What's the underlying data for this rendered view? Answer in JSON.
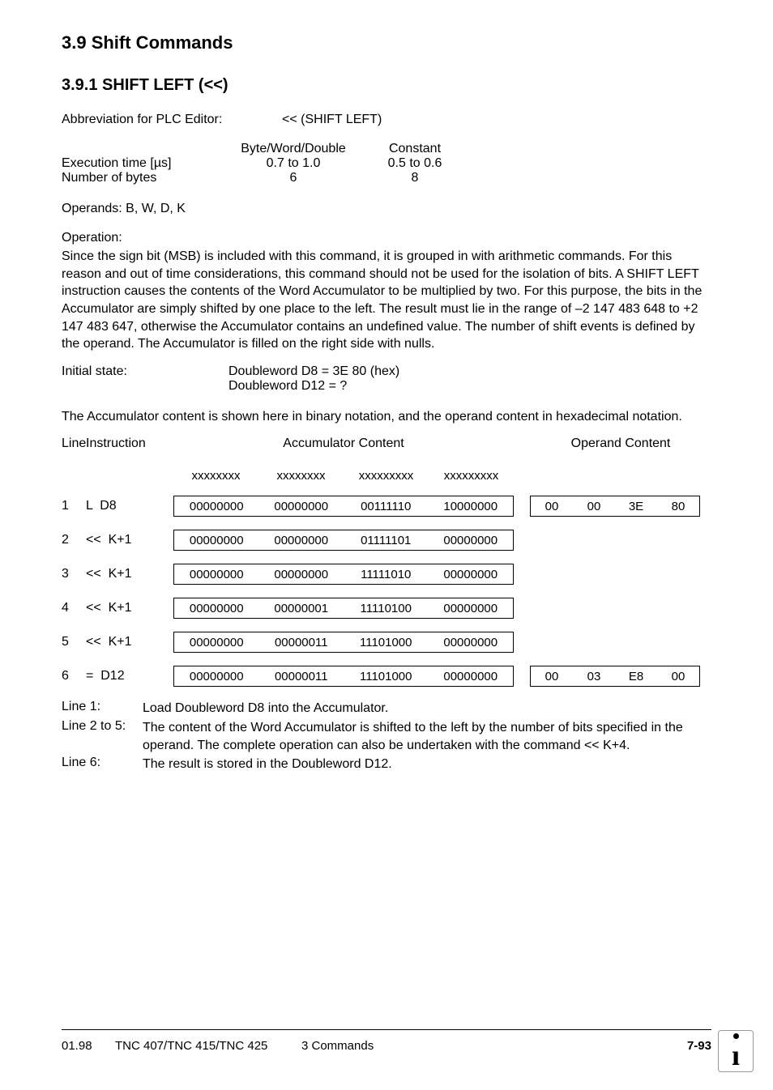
{
  "headings": {
    "h1": "3.9  Shift Commands",
    "h2": "3.9.1  SHIFT LEFT   (<<)"
  },
  "abbrev": {
    "label": "Abbreviation for PLC Editor:",
    "value": "<<   (SHIFT LEFT)"
  },
  "timing": {
    "col_headers": {
      "c2": "Byte/Word/Double",
      "c3": "Constant"
    },
    "rows": [
      {
        "c1": "Execution time [µs]",
        "c2": "0.7 to 1.0",
        "c3": "0.5 to 0.6"
      },
      {
        "c1": "Number of bytes",
        "c2": "6",
        "c3": "8"
      }
    ]
  },
  "operands_line": "Operands: B, W, D, K",
  "operation_label": "Operation:",
  "operation_body": "Since the sign bit (MSB) is included with this command, it is grouped in with arithmetic commands. For this reason and out of time considerations, this command should not be used for the isolation of bits. A SHIFT LEFT instruction causes the contents of the Word Accumulator to be multiplied by two. For this purpose, the bits in the Accumulator are simply shifted by one place to the left. The result must lie in the range of –2 147 483 648 to +2 147  483 647, otherwise the Accumulator contains an undefined value. The number of shift events is defined by the operand. The Accumulator is filled on the right side with nulls.",
  "initial": {
    "label": "Initial state:",
    "line1": "Doubleword D8    =  3E 80    (hex)",
    "line2": "Doubleword D12  =  ?"
  },
  "acc_note": "The Accumulator content is shown here in binary notation, and the operand content in hexadecimal notation.",
  "trace": {
    "head_line": "Line",
    "head_instr": "Instruction",
    "head_acc": "Accumulator Content",
    "head_op": "Operand Content",
    "mask_row": [
      "xxxxxxxx",
      "xxxxxxxx",
      "xxxxxxxxx",
      "xxxxxxxxx"
    ],
    "rows": [
      {
        "n": "1",
        "instr": "L  D8",
        "acc": [
          "00000000",
          "00000000",
          "00111110",
          "10000000"
        ],
        "op": [
          "00",
          "00",
          "3E",
          "80"
        ]
      },
      {
        "n": "2",
        "instr": "<<  K+1",
        "acc": [
          "00000000",
          "00000000",
          "01111101",
          "00000000"
        ],
        "op": null
      },
      {
        "n": "3",
        "instr": "<<  K+1",
        "acc": [
          "00000000",
          "00000000",
          "11111010",
          "00000000"
        ],
        "op": null
      },
      {
        "n": "4",
        "instr": "<<  K+1",
        "acc": [
          "00000000",
          "00000001",
          "11110100",
          "00000000"
        ],
        "op": null
      },
      {
        "n": "5",
        "instr": "<<  K+1",
        "acc": [
          "00000000",
          "00000011",
          "11101000",
          "00000000"
        ],
        "op": null
      },
      {
        "n": "6",
        "instr": "=  D12",
        "acc": [
          "00000000",
          "00000011",
          "11101000",
          "00000000"
        ],
        "op": [
          "00",
          "03",
          "E8",
          "00"
        ]
      }
    ]
  },
  "explain": [
    {
      "label": "Line 1:",
      "text": "Load Doubleword D8 into the Accumulator."
    },
    {
      "label": "Line 2 to 5:",
      "text": "The content of the Word Accumulator is shifted to the left by the number of bits specified in the operand.  The complete operation can also be undertaken with the command << K+4."
    },
    {
      "label": "Line 6:",
      "text": "The result is stored in the Doubleword D12."
    }
  ],
  "footer": {
    "date": "01.98",
    "model": "TNC 407/TNC 415/TNC 425",
    "section": "3  Commands",
    "page": "7-93"
  },
  "style": {
    "page_bg": "#ffffff",
    "text_color": "#000000",
    "border_color": "#000000",
    "h1_fontsize": 22,
    "h2_fontsize": 20,
    "body_fontsize": 16,
    "cell_fontsize": 15,
    "font_family": "Arial, Helvetica, sans-serif"
  }
}
